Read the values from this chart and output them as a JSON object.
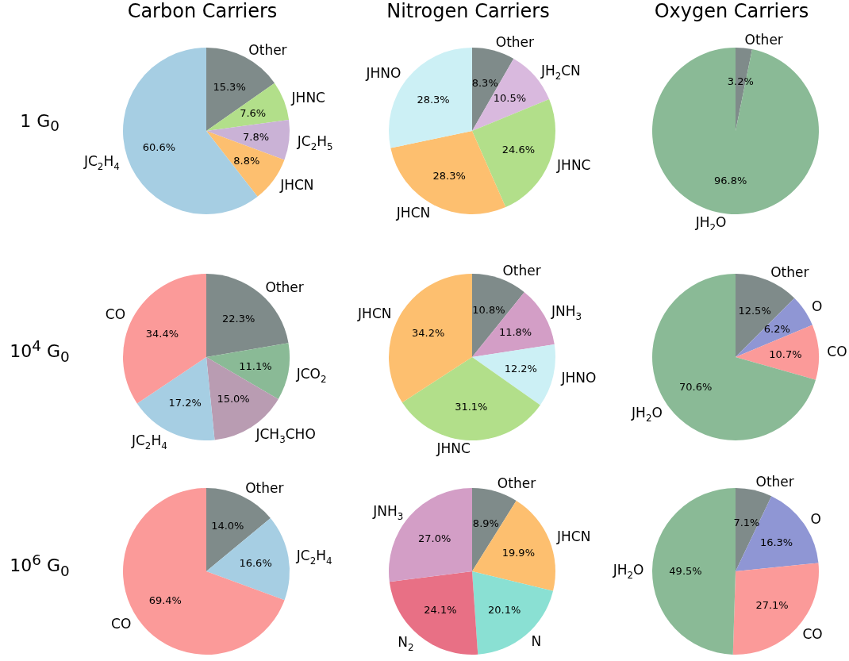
{
  "chart_data": [
    {
      "type": "pie",
      "title": "Carbon Carriers",
      "ylabel": "1 G$_{0}$",
      "categories": [
        "Other",
        "JHNC",
        "JC$_{2}$H$_{5}$",
        "JHCN",
        "JC$_{2}$H$_{4}$"
      ],
      "values": [
        15.3,
        7.6,
        7.8,
        8.8,
        60.6
      ],
      "value_labels": [
        "15.3%",
        "7.6%",
        "7.8%",
        "8.8%",
        "60.6%"
      ],
      "colors": [
        "#7f8b8a",
        "#b2df8a",
        "#cab2d6",
        "#fdbf6f",
        "#a6cee3"
      ]
    },
    {
      "type": "pie",
      "title": "Nitrogen Carriers",
      "categories": [
        "Other",
        "JH$_{2}$CN",
        "JHNC",
        "JHCN",
        "JHNO"
      ],
      "values": [
        8.3,
        10.5,
        24.6,
        28.3,
        28.3
      ],
      "value_labels": [
        "8.3%",
        "10.5%",
        "24.6%",
        "28.3%",
        "28.3%"
      ],
      "colors": [
        "#7f8b8a",
        "#d9b9de",
        "#b2df8a",
        "#fdbf6f",
        "#ccf0f5"
      ]
    },
    {
      "type": "pie",
      "title": "Oxygen Carriers",
      "categories": [
        "Other",
        "JH$_{2}$O"
      ],
      "values": [
        3.2,
        96.8
      ],
      "value_labels": [
        "3.2%",
        "96.8%"
      ],
      "colors": [
        "#7f8b8a",
        "#8aba96"
      ]
    },
    {
      "type": "pie",
      "ylabel": "10$^{4}$ G$_{0}$",
      "categories": [
        "Other",
        "JCO$_{2}$",
        "JCH$_{3}$CHO",
        "JC$_{2}$H$_{4}$",
        "CO"
      ],
      "values": [
        22.3,
        11.1,
        15.0,
        17.2,
        34.4
      ],
      "value_labels": [
        "22.3%",
        "11.1%",
        "15.0%",
        "17.2%",
        "34.4%"
      ],
      "colors": [
        "#7f8b8a",
        "#8aba96",
        "#b99cb2",
        "#a6cee3",
        "#fb9a99"
      ]
    },
    {
      "type": "pie",
      "categories": [
        "Other",
        "JNH$_{3}$",
        "JHNO",
        "JHNC",
        "JHCN"
      ],
      "values": [
        10.8,
        11.8,
        12.2,
        31.1,
        34.2
      ],
      "value_labels": [
        "10.8%",
        "11.8%",
        "12.2%",
        "31.1%",
        "34.2%"
      ],
      "colors": [
        "#7f8b8a",
        "#d39ec6",
        "#ccf0f5",
        "#b2df8a",
        "#fdbf6f"
      ]
    },
    {
      "type": "pie",
      "categories": [
        "Other",
        "O",
        "CO",
        "JH$_{2}$O"
      ],
      "values": [
        12.5,
        6.2,
        10.7,
        70.6
      ],
      "value_labels": [
        "12.5%",
        "6.2%",
        "10.7%",
        "70.6%"
      ],
      "colors": [
        "#7f8b8a",
        "#8f96d4",
        "#fb9a99",
        "#8aba96"
      ]
    },
    {
      "type": "pie",
      "ylabel": "10$^{6}$ G$_{0}$",
      "categories": [
        "Other",
        "JC$_{2}$H$_{4}$",
        "CO"
      ],
      "values": [
        14.0,
        16.6,
        69.4
      ],
      "value_labels": [
        "14.0%",
        "16.6%",
        "69.4%"
      ],
      "colors": [
        "#7f8b8a",
        "#a6cee3",
        "#fb9a99"
      ]
    },
    {
      "type": "pie",
      "categories": [
        "Other",
        "JHCN",
        "N",
        "N$_{2}$",
        "JNH$_{3}$"
      ],
      "values": [
        8.9,
        19.9,
        20.1,
        24.1,
        27.0
      ],
      "value_labels": [
        "8.9%",
        "19.9%",
        "20.1%",
        "24.1%",
        "27.0%"
      ],
      "colors": [
        "#7f8b8a",
        "#fdbf6f",
        "#8ae0d3",
        "#e87085",
        "#d39ec6"
      ]
    },
    {
      "type": "pie",
      "categories": [
        "Other",
        "O",
        "CO",
        "JH$_{2}$O"
      ],
      "values": [
        7.1,
        16.3,
        27.1,
        49.5
      ],
      "value_labels": [
        "7.1%",
        "16.3%",
        "27.1%",
        "49.5%"
      ],
      "colors": [
        "#7f8b8a",
        "#8f96d4",
        "#fb9a99",
        "#8aba96"
      ]
    }
  ]
}
